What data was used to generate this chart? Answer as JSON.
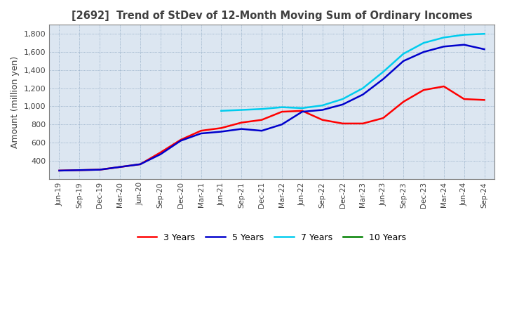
{
  "title": "[2692]  Trend of StDev of 12-Month Moving Sum of Ordinary Incomes",
  "ylabel": "Amount (million yen)",
  "ylim": [
    200,
    1900
  ],
  "yticks": [
    400,
    600,
    800,
    1000,
    1200,
    1400,
    1600,
    1800
  ],
  "background_color": "#dce6f1",
  "grid_color": "#7090b0",
  "title_color": "#404040",
  "series": {
    "3 Years": {
      "color": "#ff0000",
      "y": [
        290,
        295,
        300,
        330,
        360,
        490,
        630,
        730,
        760,
        820,
        850,
        940,
        950,
        850,
        810,
        810,
        870,
        1050,
        1180,
        1220,
        1080,
        1070
      ]
    },
    "5 Years": {
      "color": "#0000cc",
      "y": [
        290,
        295,
        300,
        330,
        360,
        470,
        620,
        700,
        720,
        750,
        730,
        800,
        940,
        960,
        1020,
        1130,
        1300,
        1500,
        1600,
        1660,
        1680,
        1630
      ]
    },
    "7 Years": {
      "color": "#00ccee",
      "y": [
        null,
        null,
        null,
        null,
        null,
        null,
        null,
        null,
        950,
        960,
        970,
        990,
        980,
        1010,
        1080,
        1200,
        1380,
        1580,
        1700,
        1760,
        1790,
        1800
      ]
    },
    "10 Years": {
      "color": "#008000",
      "y": [
        null,
        null,
        null,
        null,
        null,
        null,
        null,
        null,
        null,
        null,
        null,
        null,
        null,
        null,
        null,
        null,
        null,
        null,
        null,
        null,
        null,
        null
      ]
    }
  },
  "xtick_labels": [
    "Jun-19",
    "Sep-19",
    "Dec-19",
    "Mar-20",
    "Jun-20",
    "Sep-20",
    "Dec-20",
    "Mar-21",
    "Jun-21",
    "Sep-21",
    "Dec-21",
    "Mar-22",
    "Jun-22",
    "Sep-22",
    "Dec-22",
    "Mar-23",
    "Jun-23",
    "Sep-23",
    "Dec-23",
    "Mar-24",
    "Jun-24",
    "Sep-24"
  ],
  "legend_order": [
    "3 Years",
    "5 Years",
    "7 Years",
    "10 Years"
  ]
}
